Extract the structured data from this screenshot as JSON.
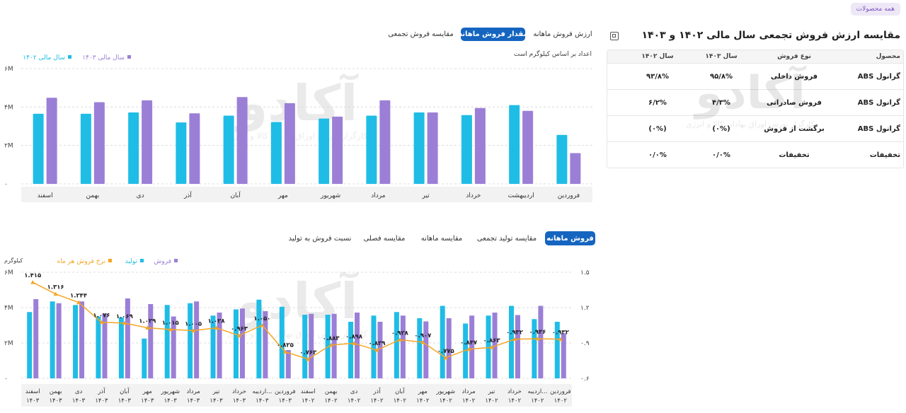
{
  "top_badge": "همه محصولات",
  "right_panel": {
    "title": "مقایسه ارزش فروش تجمعی سال مالی ۱۴۰۲ و ۱۴۰۳",
    "table": {
      "headers": [
        "محصول",
        "نوع فروش",
        "سال ۱۴۰۳",
        "سال ۱۴۰۲"
      ],
      "rows": [
        [
          "گرانول ABS",
          "فروش داخلی",
          "۹۵/۸%",
          "۹۳/۸%"
        ],
        [
          "گرانول ABS",
          "فروش صادراتی",
          "۴/۳%",
          "۶/۲%"
        ],
        [
          "گرانول ABS",
          "برگشت از فروش",
          "(۰%)",
          "(۰%)"
        ],
        [
          "تخفیفات",
          "تخفیفات",
          "۰/۰%",
          "۰/۰%"
        ]
      ]
    }
  },
  "top_tabs": [
    "ارزش فروش ماهانه",
    "مقدار فروش ماهانه",
    "مقایسه فروش تجمعی"
  ],
  "top_active_tab": 1,
  "bottom_tabs": [
    "فروش ماهانه",
    "مقایسه تولید تجمعی",
    "مقایسه ماهانه",
    "مقایسه فصلی",
    "نسبت فروش به تولید"
  ],
  "bottom_active_tab": 0,
  "chart1_note": "اعداد بر اساس کیلوگرم است",
  "chart2_unit": "کیلوگرم",
  "colors": {
    "cyan": "#1fbde6",
    "purple": "#9b7fd6",
    "orange": "#f5a623",
    "accent": "#1565c0"
  },
  "watermark": {
    "text": "آکادو",
    "subtitle": "کارگزار بورس اوراق بهادار، کالا و انرژی"
  },
  "chart_data": [
    {
      "type": "bar",
      "categories": [
        "فروردین",
        "اردیبهشت",
        "خرداد",
        "تیر",
        "مرداد",
        "شهریور",
        "مهر",
        "آبان",
        "آذر",
        "دی",
        "بهمن",
        "اسفند"
      ],
      "series": [
        {
          "name": "سال مالی ۱۴۰۳",
          "color": "#9b7fd6",
          "values": [
            1.6,
            3.8,
            3.95,
            3.72,
            4.35,
            3.5,
            4.2,
            4.52,
            3.67,
            4.35,
            4.25,
            4.48
          ]
        },
        {
          "name": "سال مالی ۱۴۰۲",
          "color": "#1fbde6",
          "values": [
            2.55,
            4.1,
            3.58,
            3.72,
            3.55,
            3.4,
            3.22,
            3.55,
            3.2,
            3.72,
            3.65,
            3.65
          ]
        }
      ],
      "yticks": [
        "۰",
        "۲M",
        "۴M",
        "۶M"
      ],
      "ylim": [
        0,
        6
      ],
      "grid": true,
      "legend_position": "top-left"
    },
    {
      "type": "bar",
      "categories": [
        [
          "فروردین",
          "۱۴۰۲"
        ],
        [
          "اردیبه...",
          "۱۴۰۲"
        ],
        [
          "خرداد",
          "۱۴۰۲"
        ],
        [
          "تیر",
          "۱۴۰۲"
        ],
        [
          "مرداد",
          "۱۴۰۲"
        ],
        [
          "شهریور",
          "۱۴۰۲"
        ],
        [
          "مهر",
          "۱۴۰۲"
        ],
        [
          "آبان",
          "۱۴۰۲"
        ],
        [
          "آذر",
          "۱۴۰۲"
        ],
        [
          "دی",
          "۱۴۰۲"
        ],
        [
          "بهمن",
          "۱۴۰۲"
        ],
        [
          "اسفند",
          "۱۴۰۲"
        ],
        [
          "فروردین",
          "۱۴۰۳"
        ],
        [
          "اردیبه...",
          "۱۴۰۳"
        ],
        [
          "خرداد",
          "۱۴۰۳"
        ],
        [
          "تیر",
          "۱۴۰۳"
        ],
        [
          "مرداد",
          "۱۴۰۳"
        ],
        [
          "شهریور",
          "۱۴۰۳"
        ],
        [
          "مهر",
          "۱۴۰۳"
        ],
        [
          "آبان",
          "۱۴۰۳"
        ],
        [
          "آذر",
          "۱۴۰۳"
        ],
        [
          "دی",
          "۱۴۰۳"
        ],
        [
          "بهمن",
          "۱۴۰۳"
        ],
        [
          "اسفند",
          "۱۴۰۳"
        ]
      ],
      "series": [
        {
          "name": "فروش",
          "color": "#9b7fd6",
          "values": [
            2.55,
            4.1,
            3.58,
            3.72,
            3.55,
            3.4,
            3.22,
            3.55,
            3.2,
            3.72,
            3.65,
            3.65,
            1.6,
            3.8,
            3.95,
            3.72,
            4.35,
            3.5,
            4.2,
            4.52,
            3.67,
            4.35,
            4.25,
            4.48
          ]
        },
        {
          "name": "تولید",
          "color": "#1fbde6",
          "values": [
            3.2,
            3.35,
            4.1,
            3.55,
            3.1,
            4.1,
            3.4,
            3.75,
            3.55,
            3.2,
            3.6,
            3.6,
            4.05,
            4.45,
            3.9,
            3.55,
            4.25,
            4.15,
            2.25,
            3.45,
            3.5,
            4.15,
            4.35,
            3.75
          ]
        },
        {
          "name": "نرخ فروش هر ماه",
          "color": "#f5a623",
          "type": "line",
          "axis": "right",
          "values": [
            0.932,
            0.936,
            0.932,
            0.863,
            0.847,
            0.775,
            0.907,
            0.928,
            0.839,
            0.898,
            0.883,
            0.763,
            0.825,
            1.05,
            0.963,
            1.028,
            1.005,
            1.015,
            1.029,
            1.069,
            1.076,
            1.244,
            1.316,
            1.415
          ]
        }
      ],
      "point_labels": [
        "۰.۹۳۲",
        "۰.۹۳۶",
        "۰.۹۳۲",
        "۰.۸۶۳",
        "۰.۸۴۷",
        "۰.۷۷۵",
        "۰.۹۰۷",
        "۰.۹۲۸",
        "۰.۸۳۹",
        "۰.۸۹۸",
        "۰.۸۸۳",
        "۰.۷۶۳",
        "۰.۸۲۵",
        "۱.۰۵۰",
        "۰.۹۶۳",
        "۱.۰۲۸",
        "۱.۰۰۵",
        "۱.۰۱۵",
        "۱.۰۲۹",
        "۱.۰۶۹",
        "۱.۰۷۶",
        "۱.۲۴۴",
        "۱.۳۱۶",
        "۱.۴۱۵"
      ],
      "yticks": [
        "۰",
        "۲M",
        "۴M",
        "۶M"
      ],
      "ylim": [
        0,
        6
      ],
      "y2ticks": [
        "۰.۶",
        "۰.۹",
        "۱.۲",
        "۱.۵"
      ],
      "y2lim": [
        0.6,
        1.5
      ],
      "grid": true,
      "legend_position": "top-left"
    }
  ]
}
